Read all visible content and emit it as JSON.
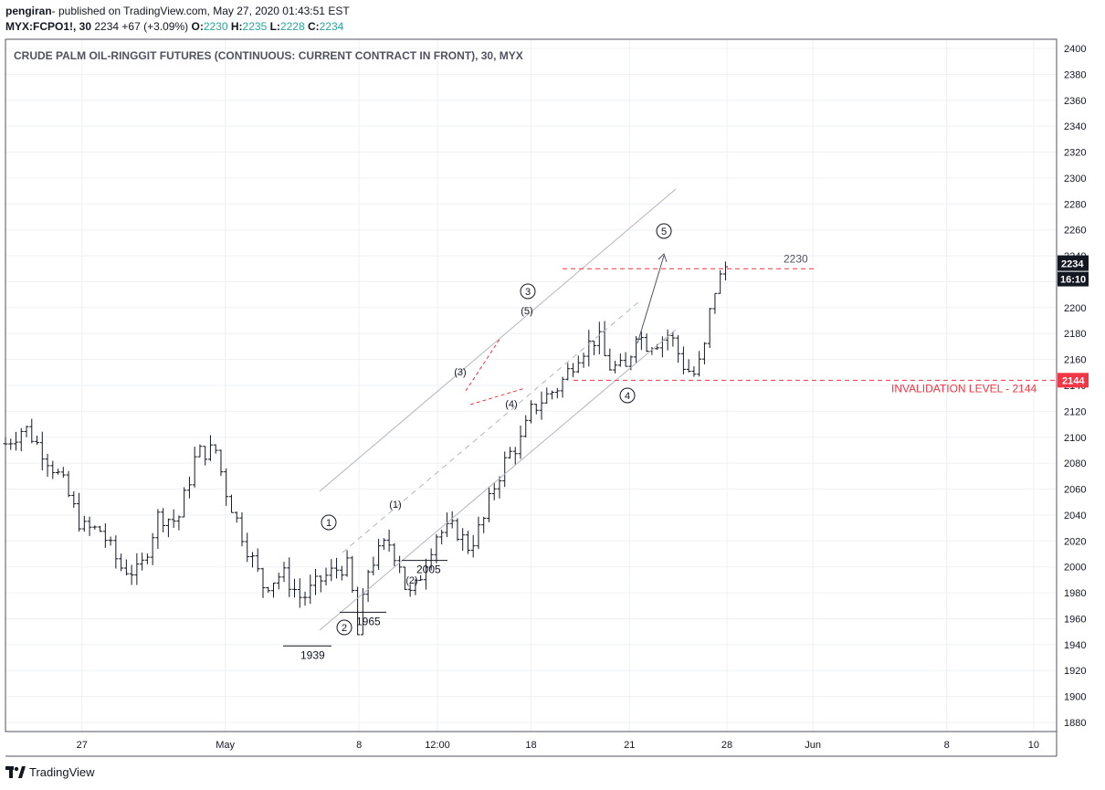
{
  "header": {
    "publisher": "pengiran",
    "published_text": "- published on TradingView.com, May 27, 2020 01:43:51 EST",
    "symbol": "MYX:FCPO1!, 30",
    "last": "2234",
    "change": "+67 (+3.09%)",
    "o_label": "O:",
    "o": "2230",
    "h_label": "H:",
    "h": "2235",
    "l_label": "L:",
    "l": "2228",
    "c_label": "C:",
    "c": "2234"
  },
  "footer": {
    "brand": "TradingView"
  },
  "colors": {
    "up_down": "#131722",
    "accent": "#26a69a",
    "red": "#f23645",
    "grid": "#eef0f3",
    "channel": "#b2b5be"
  },
  "chart_data": {
    "type": "bar",
    "title": "CRUDE PALM OIL-RINGGIT FUTURES (CONTINUOUS: CURRENT CONTRACT IN FRONT), 30, MYX",
    "ylim": [
      1870,
      2410
    ],
    "y_ticks": [
      1880,
      1900,
      1920,
      1940,
      1960,
      1980,
      2000,
      2020,
      2040,
      2060,
      2080,
      2100,
      2120,
      2140,
      2160,
      2180,
      2200,
      2220,
      2240,
      2260,
      2280,
      2300,
      2320,
      2340,
      2360,
      2380,
      2400
    ],
    "x_ticks": [
      {
        "label": "27",
        "x": 8
      },
      {
        "label": "May",
        "x": 23
      },
      {
        "label": "8",
        "x": 37
      },
      {
        "label": "12:00",
        "x": 45.2
      },
      {
        "label": "18",
        "x": 55
      },
      {
        "label": "21",
        "x": 65.3
      },
      {
        "label": "28",
        "x": 75.5
      },
      {
        "label": "Jun",
        "x": 84.5
      },
      {
        "label": "8",
        "x": 98.5
      },
      {
        "label": "10",
        "x": 107.6
      }
    ],
    "ohlc_anchors": [
      [
        0,
        2095
      ],
      [
        2,
        2108
      ],
      [
        4,
        2088
      ],
      [
        6,
        2065
      ],
      [
        8,
        2030
      ],
      [
        10,
        2028
      ],
      [
        12,
        2000
      ],
      [
        14,
        1995
      ],
      [
        16,
        2040
      ],
      [
        18,
        2035
      ],
      [
        20,
        2088
      ],
      [
        22,
        2090
      ],
      [
        23,
        2060
      ],
      [
        25,
        2020
      ],
      [
        27,
        1985
      ],
      [
        29,
        1995
      ],
      [
        31,
        1975
      ],
      [
        33,
        1990
      ],
      [
        35,
        2000
      ],
      [
        36,
        2000
      ],
      [
        36.8,
        1945
      ],
      [
        38,
        2000
      ],
      [
        40,
        2020
      ],
      [
        41.5,
        2000
      ],
      [
        42,
        1975
      ],
      [
        43,
        1985
      ],
      [
        45,
        2025
      ],
      [
        47,
        2030
      ],
      [
        48.5,
        2015
      ],
      [
        50,
        2035
      ],
      [
        51,
        2060
      ],
      [
        52.5,
        2085
      ],
      [
        54,
        2098
      ],
      [
        55,
        2120
      ],
      [
        56,
        2128
      ],
      [
        58,
        2140
      ],
      [
        60,
        2165
      ],
      [
        62,
        2178
      ],
      [
        63,
        2155
      ],
      [
        65,
        2152
      ],
      [
        66,
        2182
      ],
      [
        67,
        2172
      ],
      [
        68.5,
        2175
      ],
      [
        69.5,
        2180
      ],
      [
        71,
        2155
      ],
      [
        72,
        2148
      ],
      [
        73,
        2162
      ],
      [
        74,
        2210
      ],
      [
        75.5,
        2234
      ]
    ],
    "horizontal_levels": [
      {
        "value": 2230,
        "label": "2230"
      },
      {
        "value": 2144,
        "label": "INVALIDATION LEVEL - 2144"
      }
    ],
    "price_tags": [
      {
        "value": 2234,
        "label": "2234",
        "time": "16:10"
      },
      {
        "value": 2144,
        "label": "2144"
      }
    ],
    "swing_labels": [
      {
        "text": "1939",
        "value": 1939
      },
      {
        "text": "1965",
        "value": 1965
      },
      {
        "text": "2005",
        "value": 2005
      }
    ],
    "wave_labels": [
      "1",
      "2",
      "3",
      "4",
      "5",
      "(1)",
      "(2)",
      "(3)",
      "(4)",
      "(5)"
    ]
  }
}
